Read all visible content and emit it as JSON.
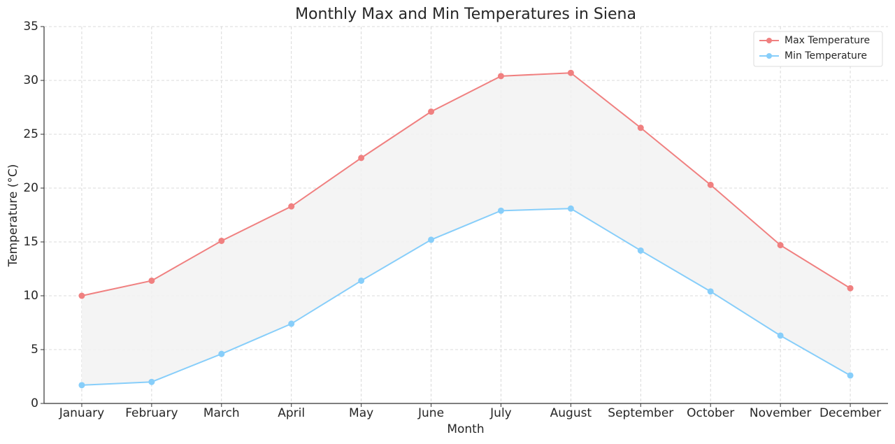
{
  "chart_data": {
    "type": "line",
    "title": "Monthly Max and Min Temperatures in Siena",
    "x_label": "Month",
    "y_label": "Temperature (°C)",
    "categories": [
      "January",
      "February",
      "March",
      "April",
      "May",
      "June",
      "July",
      "August",
      "September",
      "October",
      "November",
      "December"
    ],
    "series": [
      {
        "name": "Max Temperature",
        "color": "#f08080",
        "values": [
          10.0,
          11.4,
          15.1,
          18.3,
          22.8,
          27.1,
          30.4,
          30.7,
          25.6,
          20.3,
          14.7,
          10.7
        ]
      },
      {
        "name": "Min Temperature",
        "color": "#87cefa",
        "values": [
          1.7,
          2.0,
          4.6,
          7.4,
          11.4,
          15.2,
          17.9,
          18.1,
          14.2,
          10.4,
          6.3,
          2.6
        ]
      }
    ],
    "fill_between_color": "#f2f2f2",
    "ylim": [
      0,
      35
    ],
    "yticks": [
      0,
      5,
      10,
      15,
      20,
      25,
      30,
      35
    ],
    "grid": true,
    "legend": "upper right"
  }
}
